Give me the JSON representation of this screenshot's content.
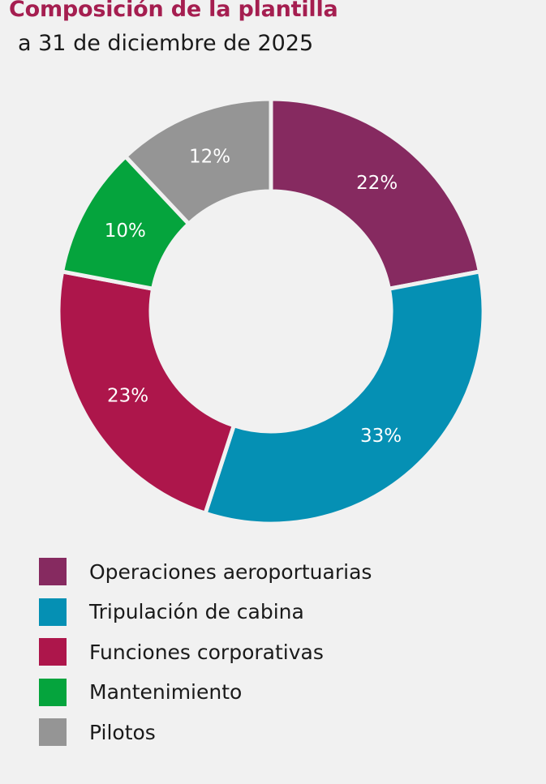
{
  "header": {
    "title": "Composición de la plantilla",
    "subtitle": "a 31 de diciembre de 2025"
  },
  "chart_data": {
    "type": "pie",
    "title": "Composición de la plantilla",
    "subtitle": "a 31 de diciembre de 2025",
    "unit": "%",
    "donut": true,
    "legend_position": "bottom-left",
    "slices": [
      {
        "label": "Operaciones aeroportuarias",
        "value": 22,
        "display": "22%",
        "color": "#862a60"
      },
      {
        "label": "Tripulación de cabina",
        "value": 33,
        "display": "33%",
        "color": "#0590b4"
      },
      {
        "label": "Funciones corporativas",
        "value": 23,
        "display": "23%",
        "color": "#ad164b"
      },
      {
        "label": "Mantenimiento",
        "value": 10,
        "display": "10%",
        "color": "#05a43d"
      },
      {
        "label": "Pilotos",
        "value": 12,
        "display": "12%",
        "color": "#959595"
      }
    ]
  }
}
